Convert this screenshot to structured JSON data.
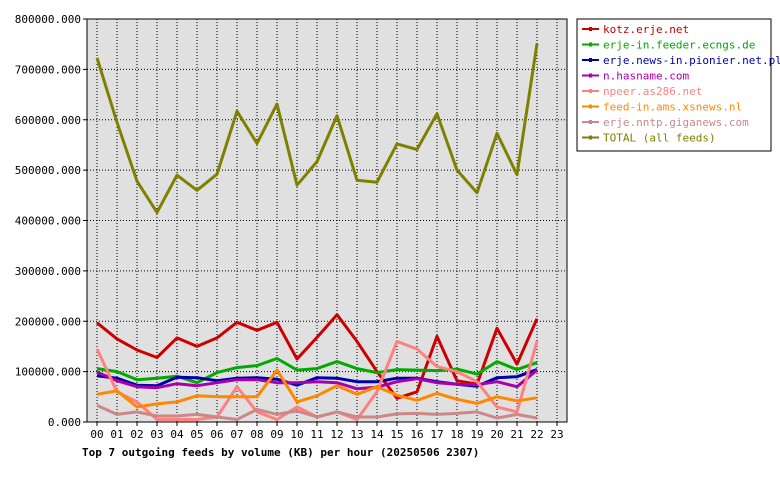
{
  "chart_data": {
    "type": "line",
    "title": "Top 7 outgoing feeds by volume (KB) per hour (20250506 2307)",
    "xlabel": "",
    "ylabel": "",
    "x_ticks": [
      "00",
      "01",
      "02",
      "03",
      "04",
      "05",
      "06",
      "07",
      "08",
      "09",
      "10",
      "11",
      "12",
      "13",
      "14",
      "15",
      "16",
      "17",
      "18",
      "19",
      "20",
      "21",
      "22",
      "23"
    ],
    "y_ticks": [
      "0.000",
      "100000.000",
      "200000.000",
      "300000.000",
      "400000.000",
      "500000.000",
      "600000.000",
      "700000.000",
      "800000.000"
    ],
    "ylim": [
      0,
      800000
    ],
    "xlim": [
      0,
      23
    ],
    "grid": true,
    "legend_position": "right",
    "series": [
      {
        "name": "kotz.erje.net",
        "color": "#cc0000",
        "values": [
          197000,
          165000,
          143000,
          128000,
          167000,
          150000,
          167000,
          198000,
          182000,
          198000,
          125000,
          168000,
          213000,
          160000,
          100000,
          47000,
          60000,
          170000,
          82000,
          75000,
          186000,
          115000,
          205000
        ]
      },
      {
        "name": "erje-in.feeder.ecngs.de",
        "color": "#00aa00",
        "values": [
          106000,
          100000,
          84000,
          87000,
          91000,
          78000,
          98000,
          108000,
          112000,
          126000,
          103000,
          106000,
          120000,
          106000,
          98000,
          104000,
          103000,
          102000,
          105000,
          95000,
          120000,
          104000,
          118000
        ]
      },
      {
        "name": "erje.news-in.pionier.net.pl",
        "color": "#0000aa",
        "values": [
          92000,
          87000,
          73000,
          72000,
          89000,
          88000,
          82000,
          87000,
          88000,
          85000,
          73000,
          88000,
          87000,
          80000,
          80000,
          87000,
          87000,
          80000,
          75000,
          71000,
          88000,
          90000,
          104000
        ]
      },
      {
        "name": "n.hasname.com",
        "color": "#aa00aa",
        "values": [
          99000,
          82000,
          70000,
          68000,
          76000,
          72000,
          78000,
          84000,
          84000,
          78000,
          78000,
          80000,
          78000,
          66000,
          69000,
          80000,
          86000,
          78000,
          75000,
          74000,
          80000,
          70000,
          103000
        ]
      },
      {
        "name": "npeer.as286.net",
        "color": "#ff8080",
        "values": [
          145000,
          60000,
          40000,
          5000,
          5000,
          5000,
          10000,
          70000,
          20000,
          5000,
          30000,
          10000,
          20000,
          5000,
          60000,
          160000,
          145000,
          110000,
          100000,
          80000,
          30000,
          20000,
          160000
        ]
      },
      {
        "name": "feed-in.ams.xsnews.nl",
        "color": "#ff8800",
        "values": [
          55000,
          62000,
          30000,
          36000,
          40000,
          52000,
          50000,
          50000,
          50000,
          103000,
          40000,
          52000,
          72000,
          55000,
          70000,
          53000,
          43000,
          57000,
          45000,
          37000,
          50000,
          42000,
          48000
        ]
      },
      {
        "name": "erje.nntp.giganews.com",
        "color": "#cc8888",
        "values": [
          33000,
          15000,
          20000,
          12000,
          12000,
          15000,
          10000,
          5000,
          25000,
          15000,
          22000,
          10000,
          20000,
          10000,
          10000,
          16000,
          17000,
          15000,
          17000,
          20000,
          8000,
          15000,
          8000
        ]
      },
      {
        "name": "TOTAL (all feeds)",
        "color": "#808000",
        "values": [
          723000,
          595000,
          478000,
          416000,
          490000,
          460000,
          492000,
          617000,
          553000,
          631000,
          470000,
          517000,
          608000,
          480000,
          476000,
          552000,
          541000,
          612000,
          500000,
          455000,
          573000,
          491000,
          751000
        ]
      }
    ]
  }
}
